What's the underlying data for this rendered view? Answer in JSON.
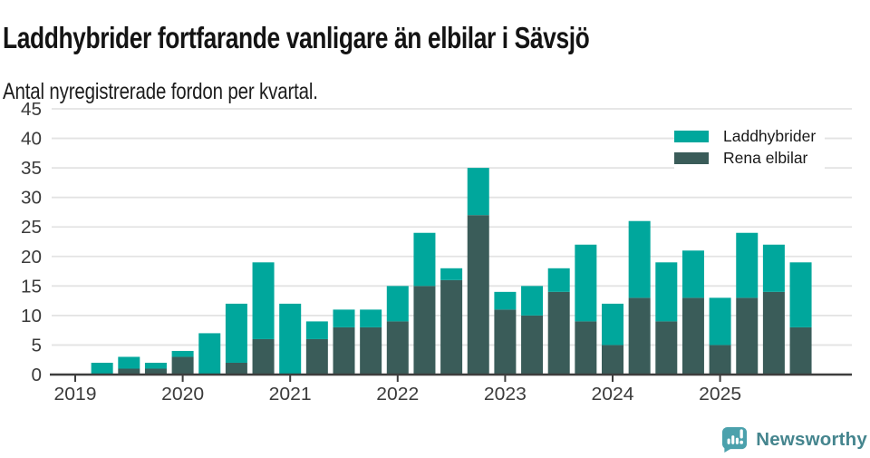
{
  "header": {
    "title": "Laddhybrider fortfarande vanligare än elbilar i Sävsjö",
    "subtitle": "Antal nyregistrerade fordon per kvartal."
  },
  "footer": {
    "brand": "Newsworthy"
  },
  "colors": {
    "laddhybrider": "#00a79c",
    "rena_elbilar": "#3a5c59",
    "grid": "#e3e3e3",
    "axis": "#3d3d3d",
    "tick_text": "#3b3b3b",
    "brand_text": "#45858e",
    "brand_icon": "#4ba1ac"
  },
  "chart_data": {
    "type": "bar",
    "stacked": true,
    "title": "Laddhybrider fortfarande vanligare än elbilar i Sävsjö",
    "subtitle": "Antal nyregistrerade fordon per kvartal.",
    "xlabel": "",
    "ylabel": "",
    "ylim": [
      0,
      45
    ],
    "grid": true,
    "legend_position": "top-right-inside",
    "y_ticks": [
      0,
      5,
      10,
      15,
      20,
      25,
      30,
      35,
      40,
      45
    ],
    "x_tick_labels": [
      "2019",
      "2020",
      "2021",
      "2022",
      "2023",
      "2024",
      "2025"
    ],
    "categories": [
      "2019 Q1",
      "2019 Q2",
      "2019 Q3",
      "2019 Q4",
      "2020 Q1",
      "2020 Q2",
      "2020 Q3",
      "2020 Q4",
      "2021 Q1",
      "2021 Q2",
      "2021 Q3",
      "2021 Q4",
      "2022 Q1",
      "2022 Q2",
      "2022 Q3",
      "2022 Q4",
      "2023 Q1",
      "2023 Q2",
      "2023 Q3",
      "2023 Q4",
      "2024 Q1",
      "2024 Q2",
      "2024 Q3",
      "2024 Q4",
      "2025 Q1",
      "2025 Q2",
      "2025 Q3",
      "2025 Q4"
    ],
    "series": [
      {
        "name": "Laddhybrider",
        "color": "#00a79c",
        "values": [
          0,
          2,
          2,
          1,
          1,
          7,
          10,
          13,
          12,
          3,
          3,
          3,
          6,
          9,
          2,
          8,
          3,
          5,
          4,
          13,
          7,
          13,
          10,
          8,
          8,
          11,
          8,
          11
        ]
      },
      {
        "name": "Rena elbilar",
        "color": "#3a5c59",
        "values": [
          0,
          0,
          1,
          1,
          3,
          0,
          2,
          6,
          0,
          6,
          8,
          8,
          9,
          15,
          16,
          27,
          11,
          10,
          14,
          9,
          5,
          13,
          9,
          13,
          5,
          13,
          14,
          8
        ]
      }
    ],
    "stack_bottom_to_top": [
      "Rena elbilar",
      "Laddhybrider"
    ],
    "stacked_totals": [
      0,
      2,
      3,
      2,
      4,
      7,
      12,
      19,
      12,
      9,
      11,
      11,
      15,
      24,
      18,
      35,
      14,
      15,
      18,
      22,
      12,
      26,
      19,
      21,
      13,
      24,
      22,
      19
    ]
  }
}
